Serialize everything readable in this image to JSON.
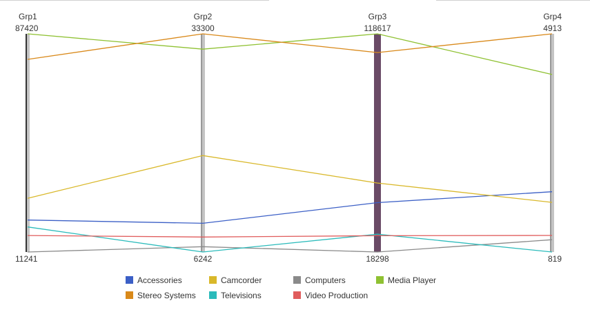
{
  "chart_data": {
    "type": "parallel-coordinates",
    "axes": [
      {
        "name": "Grp1",
        "max": 87420,
        "min": 11241,
        "max_label": "87420",
        "min_label": "11241"
      },
      {
        "name": "Grp2",
        "max": 33300,
        "min": 6242,
        "max_label": "33300",
        "min_label": "6242"
      },
      {
        "name": "Grp3",
        "max": 118617,
        "min": 18298,
        "max_label": "118617",
        "min_label": "18298"
      },
      {
        "name": "Grp4",
        "max": 4913,
        "min": 819,
        "max_label": "4913",
        "min_label": "819"
      }
    ],
    "highlighted_axis": "Grp3",
    "series": [
      {
        "name": "Accessories",
        "color": "#3b5fc6",
        "values": [
          22400,
          9800,
          41000,
          1950
        ]
      },
      {
        "name": "Camcorder",
        "color": "#d9b82a",
        "values": [
          30000,
          18200,
          50000,
          1750
        ]
      },
      {
        "name": "Computers",
        "color": "#8a8a8a",
        "values": [
          11241,
          6900,
          18298,
          1050
        ]
      },
      {
        "name": "Media Player",
        "color": "#8fc132",
        "values": [
          87420,
          31400,
          118617,
          4150
        ]
      },
      {
        "name": "Stereo Systems",
        "color": "#d9891a",
        "values": [
          78500,
          33300,
          110000,
          4913
        ]
      },
      {
        "name": "Televisions",
        "color": "#2bbbbb",
        "values": [
          20000,
          6242,
          26500,
          819
        ]
      },
      {
        "name": "Video Production",
        "color": "#e05c5c",
        "values": [
          17000,
          8100,
          25800,
          1130
        ]
      }
    ],
    "legend_position": "bottom",
    "grid": false
  }
}
